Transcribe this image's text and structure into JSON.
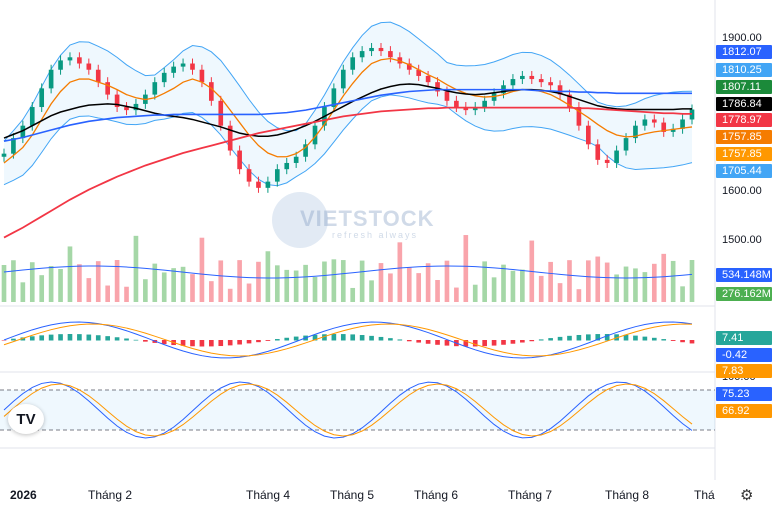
{
  "chart_data": {
    "type": "candlestick",
    "watermark": "VIETSTOCK",
    "watermark_sub": "refresh always",
    "x_labels": [
      "2026",
      "Tháng 2",
      "Tháng 4",
      "Tháng 5",
      "Tháng 6",
      "Tháng 7",
      "Tháng 8",
      "Thá"
    ],
    "price_axis": {
      "ticks": [
        "1900.00",
        "1600.00",
        "1500.00"
      ],
      "ylim": [
        1560,
        1930
      ]
    },
    "price_labels": [
      {
        "text": "1812.07",
        "color": "#2962ff"
      },
      {
        "text": "1810.25",
        "color": "#42a5f5"
      },
      {
        "text": "1807.11",
        "color": "#1b8a3a"
      },
      {
        "text": "1786.84",
        "color": "#000000"
      },
      {
        "text": "1778.97",
        "color": "#f23645"
      },
      {
        "text": "1757.85",
        "color": "#f57c00"
      },
      {
        "text": "1757.85",
        "color": "#ff9800"
      },
      {
        "text": "1705.44",
        "color": "#42a5f5"
      }
    ],
    "volume_labels": [
      {
        "text": "534.148M",
        "color": "#2962ff"
      },
      {
        "text": "276.162M",
        "color": "#4caf50"
      }
    ],
    "macd_labels": [
      {
        "text": "7.41",
        "color": "#26a69a"
      },
      {
        "text": "-0.42",
        "color": "#2962ff"
      },
      {
        "text": "7.83",
        "color": "#ff9800"
      }
    ],
    "stoch_axis": {
      "ticks": [
        "100.00"
      ]
    },
    "stoch_labels": [
      {
        "text": "75.23",
        "color": "#2962ff"
      },
      {
        "text": "66.92",
        "color": "#ff9800"
      }
    ],
    "series": [
      {
        "name": "close",
        "values": [
          1715,
          1740,
          1760,
          1790,
          1820,
          1850,
          1865,
          1870,
          1860,
          1850,
          1830,
          1810,
          1790,
          1785,
          1795,
          1810,
          1830,
          1845,
          1855,
          1860,
          1850,
          1830,
          1800,
          1760,
          1720,
          1690,
          1670,
          1660,
          1670,
          1690,
          1700,
          1710,
          1730,
          1760,
          1790,
          1820,
          1850,
          1870,
          1880,
          1885,
          1880,
          1870,
          1860,
          1850,
          1840,
          1830,
          1815,
          1800,
          1790,
          1785,
          1790,
          1800,
          1812,
          1825,
          1835,
          1840,
          1835,
          1830,
          1825,
          1810,
          1790,
          1760,
          1730,
          1705,
          1700,
          1720,
          1740,
          1760,
          1770,
          1765,
          1750,
          1755,
          1770,
          1786
        ]
      },
      {
        "name": "ma20",
        "values": [
          1700,
          1712,
          1725,
          1745,
          1770,
          1795,
          1815,
          1830,
          1835,
          1835,
          1830,
          1825,
          1818,
          1810,
          1805,
          1802,
          1805,
          1812,
          1820,
          1830,
          1835,
          1830,
          1820,
          1805,
          1785,
          1765,
          1745,
          1728,
          1716,
          1710,
          1710,
          1715,
          1725,
          1742,
          1762,
          1785,
          1808,
          1828,
          1846,
          1860,
          1866,
          1868,
          1864,
          1858,
          1850,
          1842,
          1835,
          1826,
          1818,
          1812,
          1808,
          1806,
          1807,
          1810,
          1815,
          1818,
          1818,
          1815,
          1810,
          1802,
          1793,
          1783,
          1773,
          1762,
          1752,
          1745,
          1742,
          1743,
          1747,
          1750,
          1752,
          1754,
          1756,
          1758
        ]
      },
      {
        "name": "ma50",
        "values": [
          1740,
          1746,
          1752,
          1760,
          1768,
          1776,
          1782,
          1786,
          1790,
          1793,
          1794,
          1795,
          1794,
          1791,
          1788,
          1784,
          1780,
          1777,
          1775,
          1773,
          1770,
          1766,
          1762,
          1758,
          1753,
          1748,
          1745,
          1743,
          1743,
          1745,
          1749,
          1754,
          1760,
          1767,
          1775,
          1783,
          1791,
          1799,
          1806,
          1813,
          1819,
          1823,
          1826,
          1827,
          1826,
          1823,
          1820,
          1816,
          1813,
          1811,
          1810,
          1811,
          1813,
          1815,
          1817,
          1818,
          1818,
          1817,
          1815,
          1812,
          1807,
          1802,
          1797,
          1792,
          1789,
          1787,
          1786,
          1786,
          1786,
          1786,
          1786,
          1786,
          1787,
          1787
        ]
      },
      {
        "name": "ma100",
        "values": [
          1735,
          1738,
          1741,
          1745,
          1749,
          1753,
          1757,
          1761,
          1764,
          1767,
          1769,
          1771,
          1773,
          1774,
          1775,
          1776,
          1777,
          1777,
          1778,
          1778,
          1778,
          1778,
          1778,
          1778,
          1778,
          1778,
          1778,
          1778,
          1779,
          1780,
          1781,
          1783,
          1785,
          1788,
          1791,
          1794,
          1797,
          1800,
          1803,
          1806,
          1809,
          1811,
          1813,
          1815,
          1816,
          1817,
          1818,
          1818,
          1818,
          1818,
          1818,
          1818,
          1818,
          1818,
          1818,
          1818,
          1817,
          1816,
          1816,
          1815,
          1815,
          1814,
          1814,
          1813,
          1813,
          1812,
          1812,
          1812,
          1812,
          1812,
          1812,
          1812,
          1812,
          1812
        ]
      },
      {
        "name": "ma200",
        "values": [
          1580,
          1588,
          1596,
          1605,
          1614,
          1623,
          1632,
          1641,
          1649,
          1657,
          1664,
          1671,
          1678,
          1684,
          1690,
          1696,
          1701,
          1706,
          1711,
          1716,
          1720,
          1724,
          1728,
          1732,
          1736,
          1740,
          1744,
          1748,
          1751,
          1754,
          1757,
          1760,
          1763,
          1766,
          1769,
          1772,
          1775,
          1777,
          1779,
          1781,
          1783,
          1784,
          1785,
          1786,
          1787,
          1788,
          1788,
          1789,
          1789,
          1789,
          1789,
          1789,
          1789,
          1789,
          1789,
          1789,
          1789,
          1789,
          1789,
          1789,
          1789,
          1788,
          1788,
          1787,
          1786,
          1785,
          1784,
          1783,
          1782,
          1781,
          1780,
          1780,
          1779,
          1779
        ]
      }
    ]
  }
}
